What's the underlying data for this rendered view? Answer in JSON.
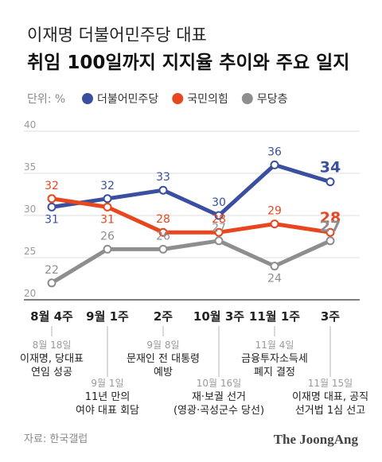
{
  "header": {
    "title": "이재명 더불어민주당 대표",
    "subtitle": "취임 100일까지 지지율 추이와 주요 일지"
  },
  "legend": {
    "unit": "단위: %"
  },
  "colors": {
    "dem": "#3a4fa0",
    "ppp": "#e8461e",
    "none": "#8e8e8e",
    "grid": "#dcdcdc",
    "axis": "#333333",
    "muted": "#8a8a8a",
    "text": "#222222"
  },
  "chart_data": {
    "type": "line",
    "x": [
      "8월 4주",
      "9월 1주",
      "2주",
      "10월 3주",
      "11월 1주",
      "3주"
    ],
    "ylim": [
      20,
      40
    ],
    "yticks": [
      20,
      25,
      30,
      35,
      40
    ],
    "series": [
      {
        "name": "더불어민주당",
        "color": "#3a4fa0",
        "values": [
          31,
          32,
          33,
          30,
          36,
          34
        ]
      },
      {
        "name": "국민의힘",
        "color": "#e8461e",
        "values": [
          32,
          31,
          28,
          28,
          29,
          28
        ]
      },
      {
        "name": "무당층",
        "color": "#8e8e8e",
        "values": [
          22,
          26,
          26,
          27,
          24,
          27
        ]
      }
    ],
    "annotations": [
      {
        "x_index": 0,
        "row": "upper",
        "date": "8월 18일",
        "lines": [
          "이재명, 당대표",
          "연임 성공"
        ]
      },
      {
        "x_index": 1,
        "row": "lower",
        "date": "9월 1일",
        "lines": [
          "11년 만의",
          "여야 대표 회담"
        ]
      },
      {
        "x_index": 2,
        "row": "upper",
        "date": "9월 8일",
        "lines": [
          "문재인 전 대통령",
          "예방"
        ]
      },
      {
        "x_index": 3,
        "row": "lower",
        "date": "10월 16일",
        "lines": [
          "재·보궐 선거",
          "(영광·곡성군수 당선)"
        ]
      },
      {
        "x_index": 4,
        "row": "upper",
        "date": "11월 4일",
        "lines": [
          "금융투자소득세",
          "폐지 결정"
        ]
      },
      {
        "x_index": 5,
        "row": "lower",
        "date": "11월 15일",
        "lines": [
          "이재명 대표, 공직",
          "선거법 1심 선고"
        ]
      }
    ]
  },
  "footer": {
    "source": "자료: 한국갤럽",
    "brand": "The JoongAng"
  }
}
